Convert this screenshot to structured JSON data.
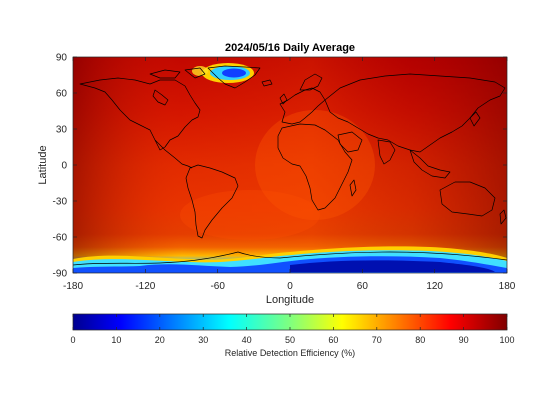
{
  "title": "2024/05/16 Daily Average",
  "map": {
    "xlabel": "Longitude",
    "ylabel": "Latitude",
    "xlim": [
      -180,
      180
    ],
    "ylim": [
      -90,
      90
    ],
    "xticks": [
      -180,
      -120,
      -60,
      0,
      60,
      120,
      180
    ],
    "yticks": [
      90,
      60,
      30,
      0,
      -30,
      -60,
      -90
    ]
  },
  "colorbar": {
    "label": "Relative Detection Efficiency (%)",
    "range": [
      0,
      100
    ],
    "ticks": [
      0,
      10,
      20,
      30,
      40,
      50,
      60,
      70,
      80,
      90,
      100
    ],
    "colormap": "jet"
  },
  "colors": {
    "low": "#00008f",
    "mid": "#7fff7f",
    "high": "#800000",
    "background_field": "#d42000",
    "coastline": "#000000"
  }
}
